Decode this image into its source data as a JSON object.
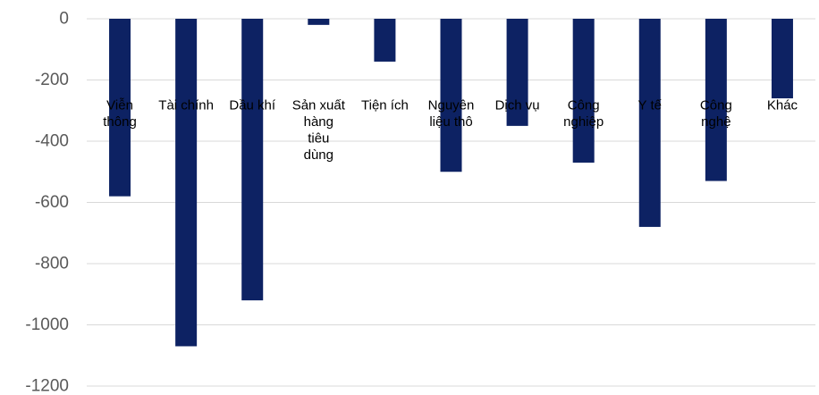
{
  "chart_data": {
    "type": "bar",
    "title": "",
    "xlabel": "",
    "ylabel": "",
    "categories": [
      [
        "Viễn",
        "thông"
      ],
      [
        "Tài chính"
      ],
      [
        "Dầu khí"
      ],
      [
        "Sản xuất",
        "hàng",
        "tiêu",
        "dùng"
      ],
      [
        "Tiện ích"
      ],
      [
        "Nguyên",
        "liệu thô"
      ],
      [
        "Dịch vụ"
      ],
      [
        "Công",
        "nghiệp"
      ],
      [
        "Y tế"
      ],
      [
        "Công",
        "nghệ"
      ],
      [
        "Khác"
      ]
    ],
    "values": [
      -580,
      -1070,
      -920,
      -20,
      -140,
      -500,
      -350,
      -470,
      -680,
      -530,
      -260
    ],
    "ylim": [
      -1200,
      0
    ],
    "yticks": [
      0,
      -200,
      -400,
      -600,
      -800,
      -1000,
      -1200
    ],
    "grid": true,
    "legend": "none",
    "bar_color": "#0d2263",
    "grid_color": "#d9d9d9",
    "tick_label_color": "#595959"
  }
}
